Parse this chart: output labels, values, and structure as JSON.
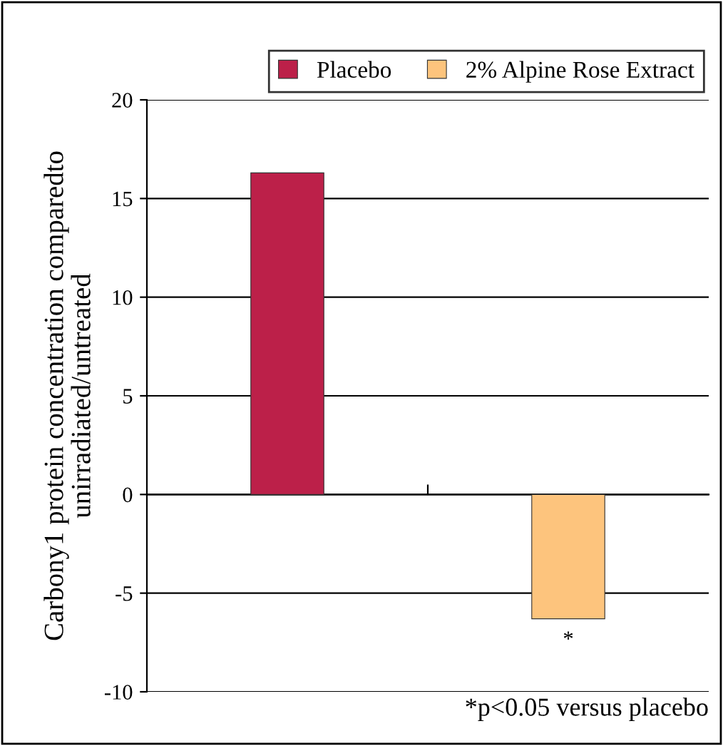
{
  "chart_data": {
    "type": "bar",
    "ylabel": "Carbony1 protein concentration comparedto\nunirradiated/untreated",
    "categories": [
      null,
      null
    ],
    "series": [
      {
        "name": "Placebo",
        "color": "#bc2049",
        "values": [
          16.3,
          null
        ]
      },
      {
        "name": "2% Alpine Rose Extract",
        "color": "#fdc47d",
        "values": [
          null,
          -6.3
        ]
      }
    ],
    "ylim": [
      -10,
      20
    ],
    "yticks": [
      -10,
      -5,
      0,
      5,
      10,
      15,
      20
    ],
    "grid": "y",
    "legend": "top right",
    "annotations": [
      "*",
      "*p<0.05 versus placebo"
    ]
  }
}
